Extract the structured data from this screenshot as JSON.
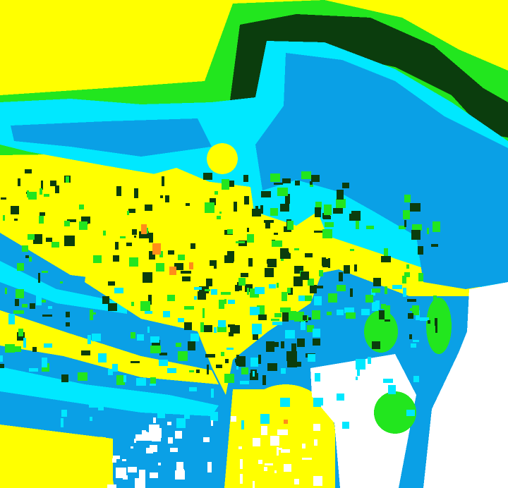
{
  "map": {
    "palette": [
      "#ffff00",
      "#22e61e",
      "#0b3d0d",
      "#00e8ff",
      "#0aa0e6",
      "#ffffff",
      "#ff8c1a"
    ]
  }
}
